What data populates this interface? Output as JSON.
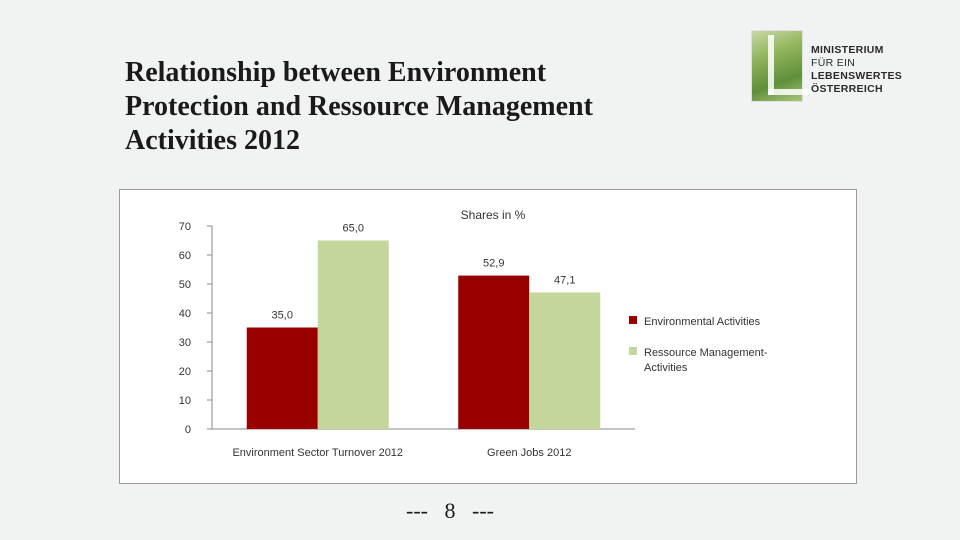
{
  "slide": {
    "title_lines": [
      "Relationship between Environment",
      "Protection and Ressource Management",
      "Activities  2012"
    ],
    "page_number": "---   8   ---"
  },
  "logo": {
    "line1": "MINISTERIUM",
    "line2": "FÜR EIN",
    "line3": "LEBENSWERTES",
    "line4": "ÖSTERREICH"
  },
  "chart_data": {
    "type": "bar",
    "title": "Shares in %",
    "categories": [
      "Environment Sector Turnover 2012",
      "Green Jobs 2012"
    ],
    "series": [
      {
        "name": "Environmental Activities",
        "values": [
          35.0,
          52.9
        ],
        "labels": [
          "35,0",
          "52,9"
        ],
        "color": "#990000"
      },
      {
        "name": "Ressource Management-Activities",
        "legend_lines": [
          "Ressource Management-",
          "Activities"
        ],
        "values": [
          65.0,
          47.1
        ],
        "labels": [
          "65,0",
          "47,1"
        ],
        "color": "#c3d69b"
      }
    ],
    "ylim": [
      0,
      70
    ],
    "yticks": [
      0,
      10,
      20,
      30,
      40,
      50,
      60,
      70
    ],
    "xlabel": "",
    "ylabel": "",
    "grid": false,
    "legend_position": "right"
  }
}
